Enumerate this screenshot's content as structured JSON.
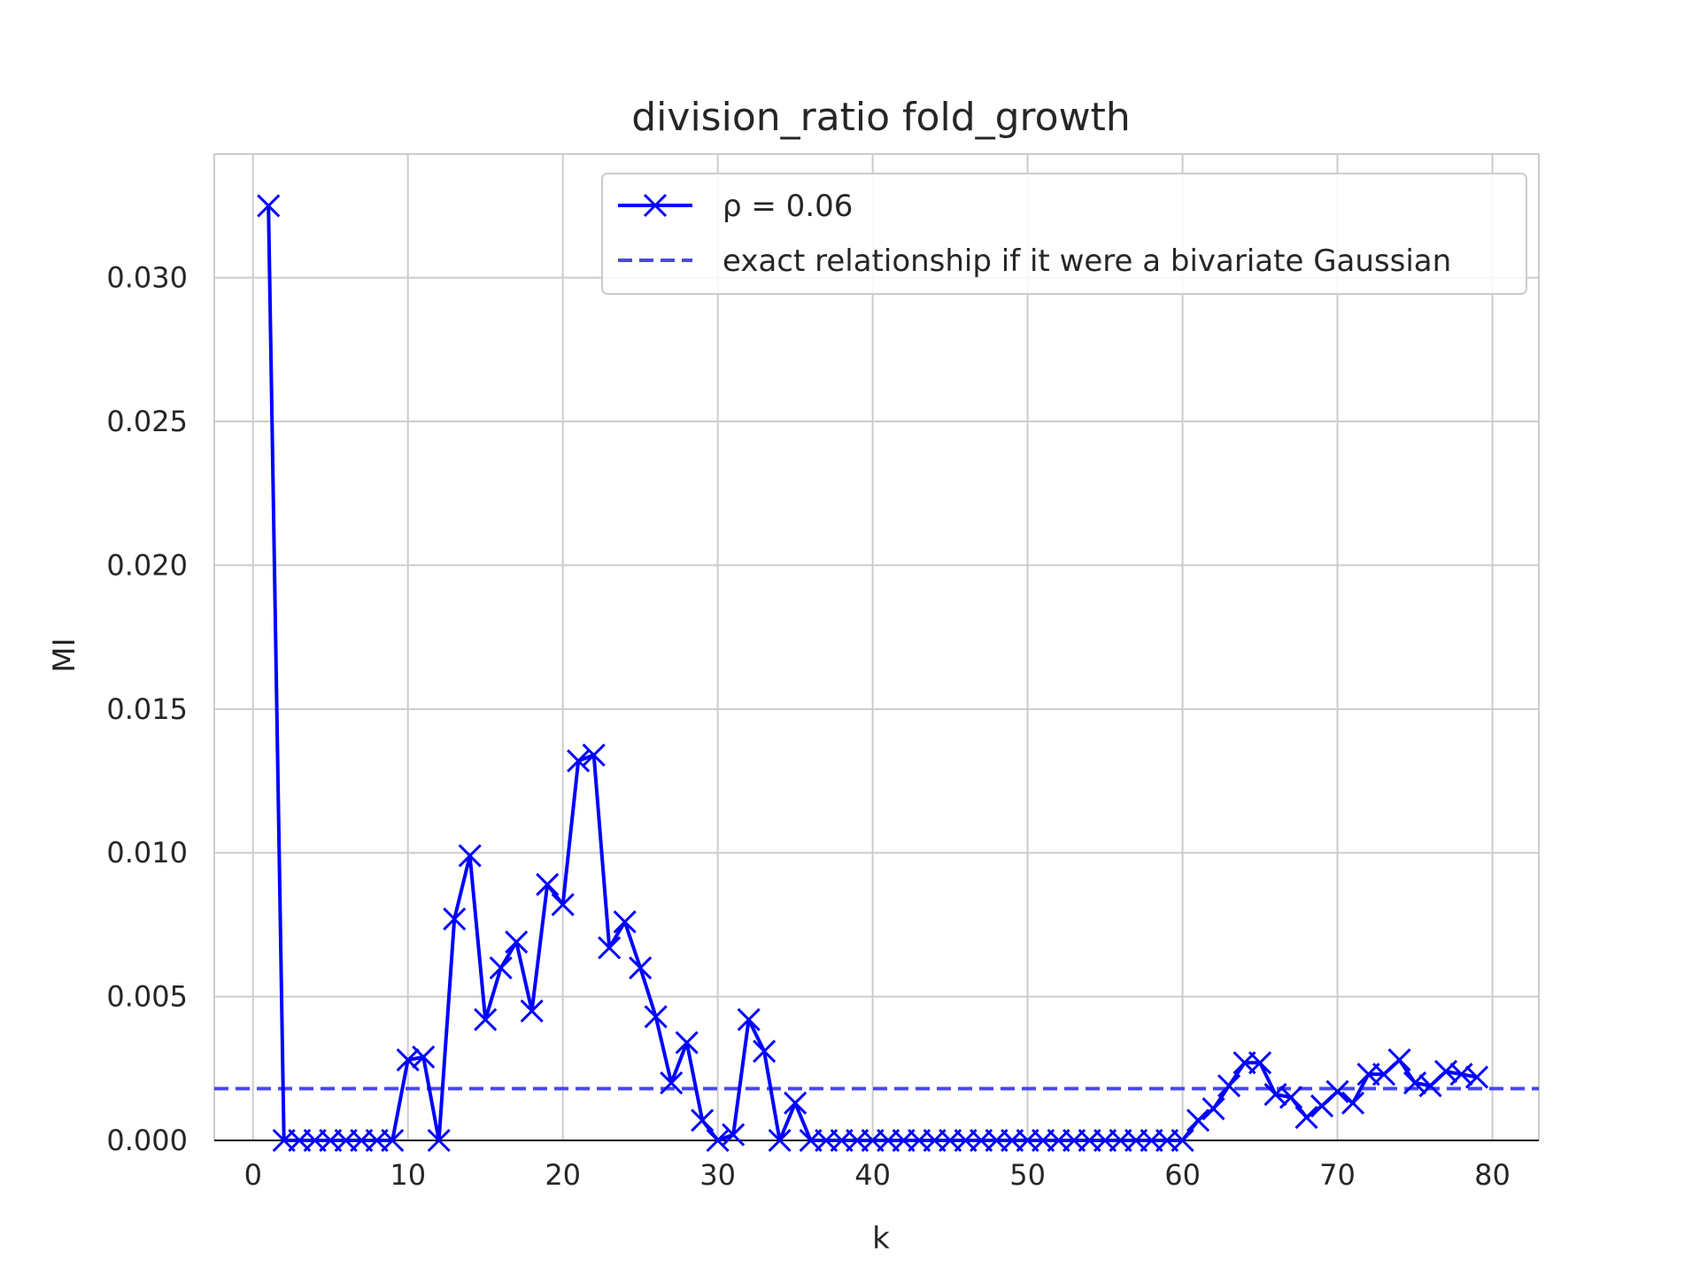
{
  "chart_data": {
    "type": "line",
    "title": "division_ratio fold_growth",
    "xlabel": "k",
    "ylabel": "MI",
    "xlim": [
      -2.5,
      83
    ],
    "ylim": [
      0,
      0.0343
    ],
    "x_ticks": [
      0,
      10,
      20,
      30,
      40,
      50,
      60,
      70,
      80
    ],
    "x_tick_labels": [
      "0",
      "10",
      "20",
      "30",
      "40",
      "50",
      "60",
      "70",
      "80"
    ],
    "y_ticks": [
      0,
      0.005,
      0.01,
      0.015,
      0.02,
      0.025,
      0.03
    ],
    "y_tick_labels": [
      "0.000",
      "0.005",
      "0.010",
      "0.015",
      "0.020",
      "0.025",
      "0.030"
    ],
    "grid": true,
    "legend_position": "top-right",
    "series": [
      {
        "name": "ρ = 0.06",
        "color": "#0000ff",
        "marker": "x",
        "x": [
          1,
          2,
          3,
          4,
          5,
          6,
          7,
          8,
          9,
          10,
          11,
          12,
          13,
          14,
          15,
          16,
          17,
          18,
          19,
          20,
          21,
          22,
          23,
          24,
          25,
          26,
          27,
          28,
          29,
          30,
          31,
          32,
          33,
          34,
          35,
          36,
          37,
          38,
          39,
          40,
          41,
          42,
          43,
          44,
          45,
          46,
          47,
          48,
          49,
          50,
          51,
          52,
          53,
          54,
          55,
          56,
          57,
          58,
          59,
          60,
          61,
          62,
          63,
          64,
          65,
          66,
          67,
          68,
          69,
          70,
          71,
          72,
          73,
          74,
          75,
          76,
          77,
          78,
          79
        ],
        "y": [
          0.0325,
          0,
          0,
          0,
          0,
          0,
          0,
          0,
          0,
          0.0028,
          0.0029,
          0,
          0.0077,
          0.0099,
          0.0042,
          0.006,
          0.0069,
          0.0045,
          0.0089,
          0.0082,
          0.0132,
          0.0134,
          0.0067,
          0.0076,
          0.006,
          0.0043,
          0.002,
          0.0034,
          0.0007,
          0,
          0.0002,
          0.0042,
          0.0031,
          0,
          0.0013,
          0,
          0,
          0,
          0,
          0,
          0,
          0,
          0,
          0,
          0,
          0,
          0,
          0,
          0,
          0,
          0,
          0,
          0,
          0,
          0,
          0,
          0,
          0,
          0,
          0,
          0.0007,
          0.0011,
          0.0019,
          0.0027,
          0.0027,
          0.0016,
          0.0015,
          0.0008,
          0.0012,
          0.0017,
          0.0013,
          0.0023,
          0.0023,
          0.0028,
          0.002,
          0.0019,
          0.0024,
          0.0023,
          0.0022
        ]
      },
      {
        "name": "exact relationship if it were a bivariate Gaussian",
        "color": "#4848f0",
        "style": "dashed",
        "y_constant": 0.0018
      }
    ]
  }
}
